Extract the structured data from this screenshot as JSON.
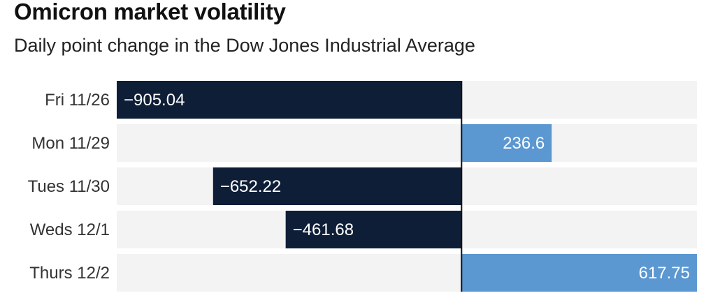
{
  "chart_data": {
    "type": "bar",
    "orientation": "horizontal",
    "title": "Omicron market volatility",
    "subtitle": "Daily point change in the Dow Jones Industrial Average",
    "xlabel": "",
    "ylabel": "",
    "categories": [
      "Fri 11/26",
      "Mon 11/29",
      "Tues 11/30",
      "Weds 12/1",
      "Thurs 12/2"
    ],
    "values": [
      -905.04,
      236.6,
      -652.22,
      -461.68,
      617.75
    ],
    "value_labels": [
      "−905.04",
      "236.6",
      "−652.22",
      "−461.68",
      "617.75"
    ],
    "xlim": [
      -905.04,
      617.75
    ],
    "grid": false,
    "legend": "none",
    "colors": {
      "negative": "#0f1e37",
      "positive": "#5b97d1",
      "track": "#f3f3f3",
      "zero_line": "#111111"
    }
  }
}
